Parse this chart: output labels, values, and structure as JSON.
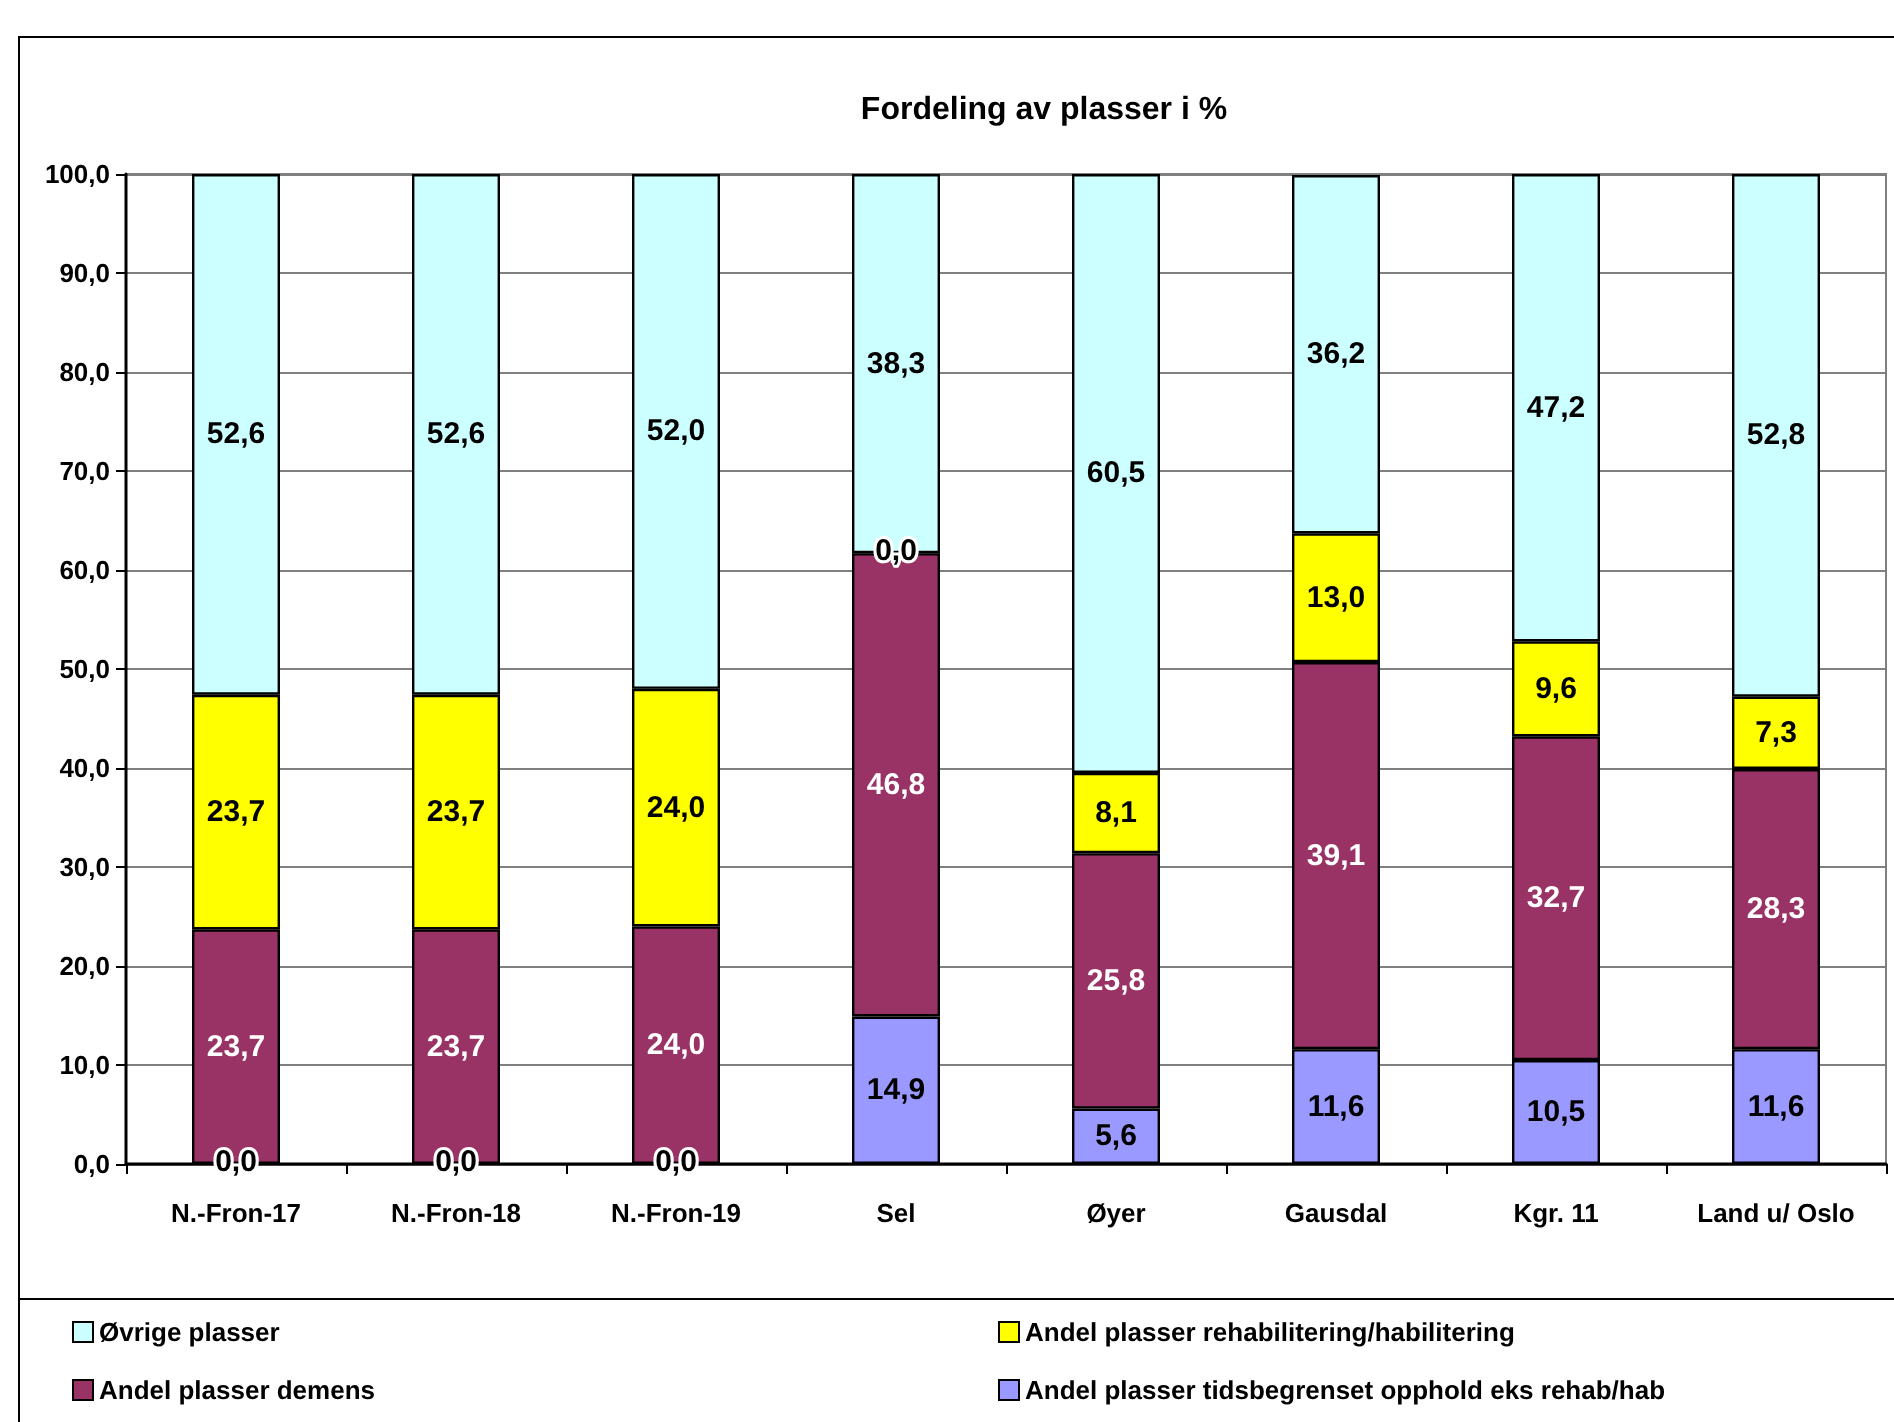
{
  "chart_data": {
    "type": "bar",
    "title": "Fordeling av plasser i %",
    "categories": [
      "N.-Fron-17",
      "N.-Fron-18",
      "N.-Fron-19",
      "Sel",
      "Øyer",
      "Gausdal",
      "Kgr. 11",
      "Land u/ Oslo"
    ],
    "stacked": true,
    "series": [
      {
        "name": "Andel plasser tidsbegrenset opphold eks rehab/hab",
        "color": "#9999ff",
        "values": [
          0,
          0,
          0,
          14.9,
          5.6,
          11.6,
          10.5,
          11.6
        ],
        "value_labels": [
          "0,0",
          "0,0",
          "0,0",
          "14,9",
          "5,6",
          "11,6",
          "10,5",
          "11,6"
        ]
      },
      {
        "name": "Andel plasser demens",
        "color": "#993366",
        "values": [
          23.7,
          23.7,
          24.0,
          46.8,
          25.8,
          39.1,
          32.7,
          28.3
        ],
        "value_labels": [
          "23,7",
          "23,7",
          "24,0",
          "46,8",
          "25,8",
          "39,1",
          "32,7",
          "28,3"
        ]
      },
      {
        "name": "Andel plasser rehabilitering/habilitering",
        "color": "#ffff00",
        "values": [
          23.7,
          23.7,
          24.0,
          0,
          8.1,
          13.0,
          9.6,
          7.3
        ],
        "value_labels": [
          "23,7",
          "23,7",
          "24,0",
          "0,0",
          "8,1",
          "13,0",
          "9,6",
          "7,3"
        ]
      },
      {
        "name": "Øvrige plasser",
        "color": "#ccffff",
        "values": [
          52.6,
          52.6,
          52.0,
          38.3,
          60.5,
          36.2,
          47.2,
          52.8
        ],
        "value_labels": [
          "52,6",
          "52,6",
          "52,0",
          "38,3",
          "60,5",
          "36,2",
          "47,2",
          "52,8"
        ]
      }
    ],
    "ylim": [
      0,
      100
    ],
    "yticks": [
      {
        "value": 0,
        "label": "0,0"
      },
      {
        "value": 10,
        "label": "10,0"
      },
      {
        "value": 20,
        "label": "20,0"
      },
      {
        "value": 30,
        "label": "30,0"
      },
      {
        "value": 40,
        "label": "40,0"
      },
      {
        "value": 50,
        "label": "50,0"
      },
      {
        "value": 60,
        "label": "60,0"
      },
      {
        "value": 70,
        "label": "70,0"
      },
      {
        "value": 80,
        "label": "80,0"
      },
      {
        "value": 90,
        "label": "90,0"
      },
      {
        "value": 100,
        "label": "100,0"
      }
    ],
    "grid": "y",
    "legend": "bottom"
  }
}
